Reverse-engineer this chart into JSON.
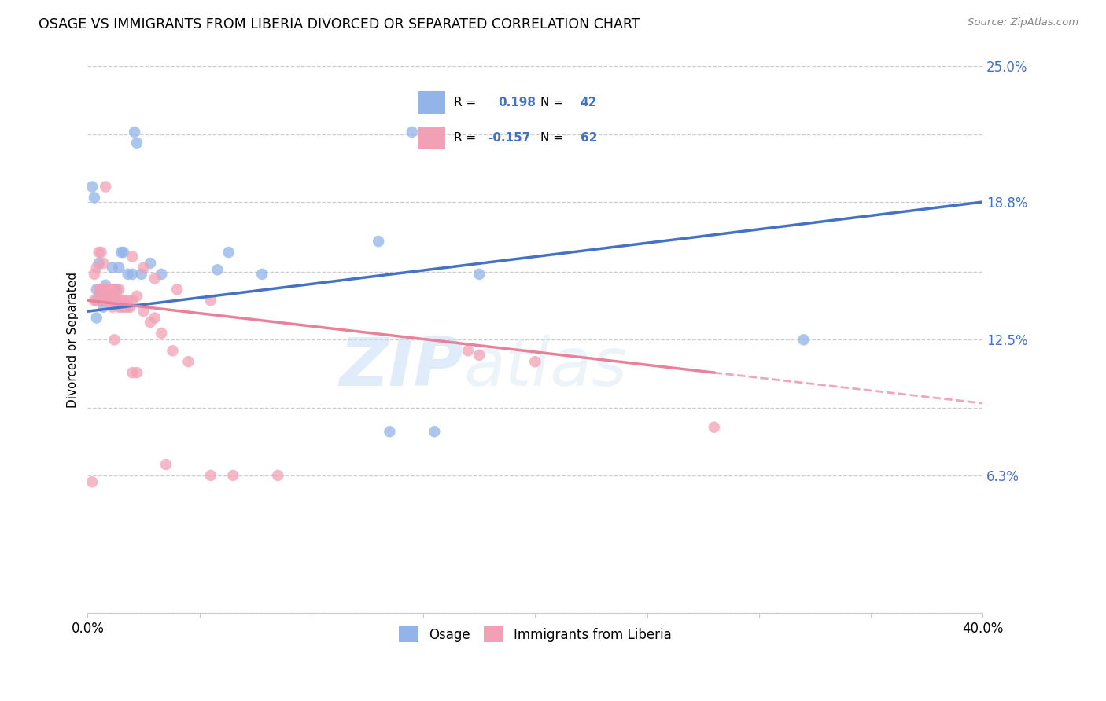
{
  "title": "OSAGE VS IMMIGRANTS FROM LIBERIA DIVORCED OR SEPARATED CORRELATION CHART",
  "source": "Source: ZipAtlas.com",
  "ylabel": "Divorced or Separated",
  "xlim": [
    0.0,
    0.4
  ],
  "ylim": [
    0.0,
    0.25
  ],
  "ytick_labels": [
    "",
    "6.3%",
    "",
    "12.5%",
    "",
    "18.8%",
    "",
    "25.0%"
  ],
  "ytick_vals": [
    0.0,
    0.063,
    0.094,
    0.125,
    0.156,
    0.188,
    0.219,
    0.25
  ],
  "xtick_labels": [
    "0.0%",
    "",
    "",
    "",
    "",
    "",
    "",
    "",
    "40.0%"
  ],
  "xtick_vals": [
    0.0,
    0.05,
    0.1,
    0.15,
    0.2,
    0.25,
    0.3,
    0.35,
    0.4
  ],
  "color_blue": "#92b4e8",
  "color_pink": "#f2a0b5",
  "line_blue": "#4472c4",
  "line_pink": "#e8829a",
  "watermark_zip": "ZIP",
  "watermark_atlas": "atlas",
  "osage_x": [
    0.002,
    0.003,
    0.004,
    0.004,
    0.005,
    0.005,
    0.006,
    0.006,
    0.006,
    0.007,
    0.007,
    0.008,
    0.008,
    0.008,
    0.009,
    0.009,
    0.01,
    0.01,
    0.01,
    0.011,
    0.011,
    0.012,
    0.013,
    0.014,
    0.015,
    0.016,
    0.018,
    0.02,
    0.021,
    0.022,
    0.024,
    0.028,
    0.033,
    0.058,
    0.063,
    0.078,
    0.13,
    0.145,
    0.175,
    0.32,
    0.155,
    0.135
  ],
  "osage_y": [
    0.195,
    0.19,
    0.135,
    0.148,
    0.16,
    0.145,
    0.148,
    0.145,
    0.143,
    0.14,
    0.143,
    0.143,
    0.148,
    0.15,
    0.143,
    0.148,
    0.145,
    0.148,
    0.143,
    0.143,
    0.158,
    0.148,
    0.148,
    0.158,
    0.165,
    0.165,
    0.155,
    0.155,
    0.22,
    0.215,
    0.155,
    0.16,
    0.155,
    0.157,
    0.165,
    0.155,
    0.17,
    0.22,
    0.155,
    0.125,
    0.083,
    0.083
  ],
  "liberia_x": [
    0.002,
    0.003,
    0.003,
    0.004,
    0.004,
    0.005,
    0.005,
    0.005,
    0.006,
    0.006,
    0.006,
    0.007,
    0.007,
    0.007,
    0.008,
    0.008,
    0.008,
    0.009,
    0.009,
    0.01,
    0.01,
    0.01,
    0.011,
    0.011,
    0.012,
    0.012,
    0.013,
    0.013,
    0.014,
    0.014,
    0.015,
    0.015,
    0.016,
    0.016,
    0.017,
    0.018,
    0.018,
    0.019,
    0.02,
    0.022,
    0.025,
    0.028,
    0.03,
    0.033,
    0.038,
    0.045,
    0.02,
    0.025,
    0.03,
    0.04,
    0.055,
    0.17,
    0.2,
    0.175,
    0.28,
    0.055,
    0.035,
    0.02,
    0.012,
    0.022,
    0.065,
    0.085
  ],
  "liberia_y": [
    0.06,
    0.143,
    0.155,
    0.143,
    0.158,
    0.148,
    0.143,
    0.165,
    0.148,
    0.145,
    0.165,
    0.148,
    0.143,
    0.16,
    0.148,
    0.143,
    0.195,
    0.148,
    0.143,
    0.145,
    0.148,
    0.143,
    0.148,
    0.14,
    0.148,
    0.143,
    0.145,
    0.143,
    0.148,
    0.14,
    0.143,
    0.14,
    0.143,
    0.14,
    0.14,
    0.143,
    0.14,
    0.14,
    0.143,
    0.145,
    0.138,
    0.133,
    0.135,
    0.128,
    0.12,
    0.115,
    0.163,
    0.158,
    0.153,
    0.148,
    0.143,
    0.12,
    0.115,
    0.118,
    0.085,
    0.063,
    0.068,
    0.11,
    0.125,
    0.11,
    0.063,
    0.063
  ],
  "blue_line_x0": 0.0,
  "blue_line_y0": 0.138,
  "blue_line_x1": 0.4,
  "blue_line_y1": 0.188,
  "pink_line_solid_x0": 0.0,
  "pink_line_solid_y0": 0.143,
  "pink_line_solid_x1": 0.28,
  "pink_line_solid_y1": 0.11,
  "pink_line_dash_x0": 0.28,
  "pink_line_dash_y0": 0.11,
  "pink_line_dash_x1": 0.4,
  "pink_line_dash_y1": 0.096
}
